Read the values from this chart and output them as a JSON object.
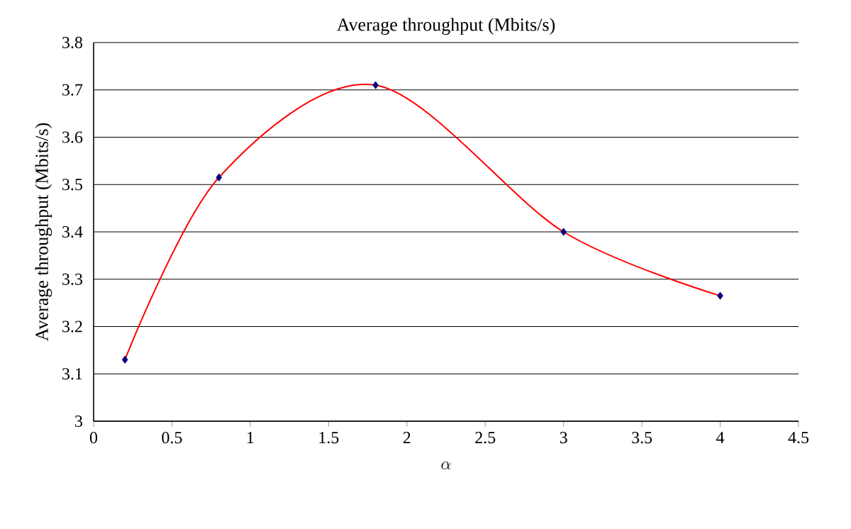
{
  "chart_data": {
    "type": "line",
    "title": "Average throughput (Mbits/s)",
    "xlabel": "\\alpha",
    "ylabel": "Average throughput (Mbits/s)",
    "x": [
      0.2,
      0.8,
      1.8,
      3,
      4
    ],
    "series": [
      {
        "color": "#ff0000",
        "marker": "none",
        "values": [
          3.13,
          3.515,
          3.71,
          3.4,
          3.265
        ]
      },
      {
        "type": "scatter",
        "color": "#000080",
        "marker": "diamond",
        "values": [
          3.13,
          3.515,
          3.71,
          3.4,
          3.265
        ]
      }
    ],
    "xlim": [
      0,
      4.5
    ],
    "xticks": [
      0,
      0.5,
      1,
      1.5,
      2,
      2.5,
      3,
      3.5,
      4,
      4.5
    ],
    "ylim": [
      3,
      3.8
    ],
    "yticks": [
      3,
      3.1,
      3.2,
      3.3,
      3.4,
      3.5,
      3.6,
      3.7,
      3.8
    ],
    "grid": "y"
  }
}
